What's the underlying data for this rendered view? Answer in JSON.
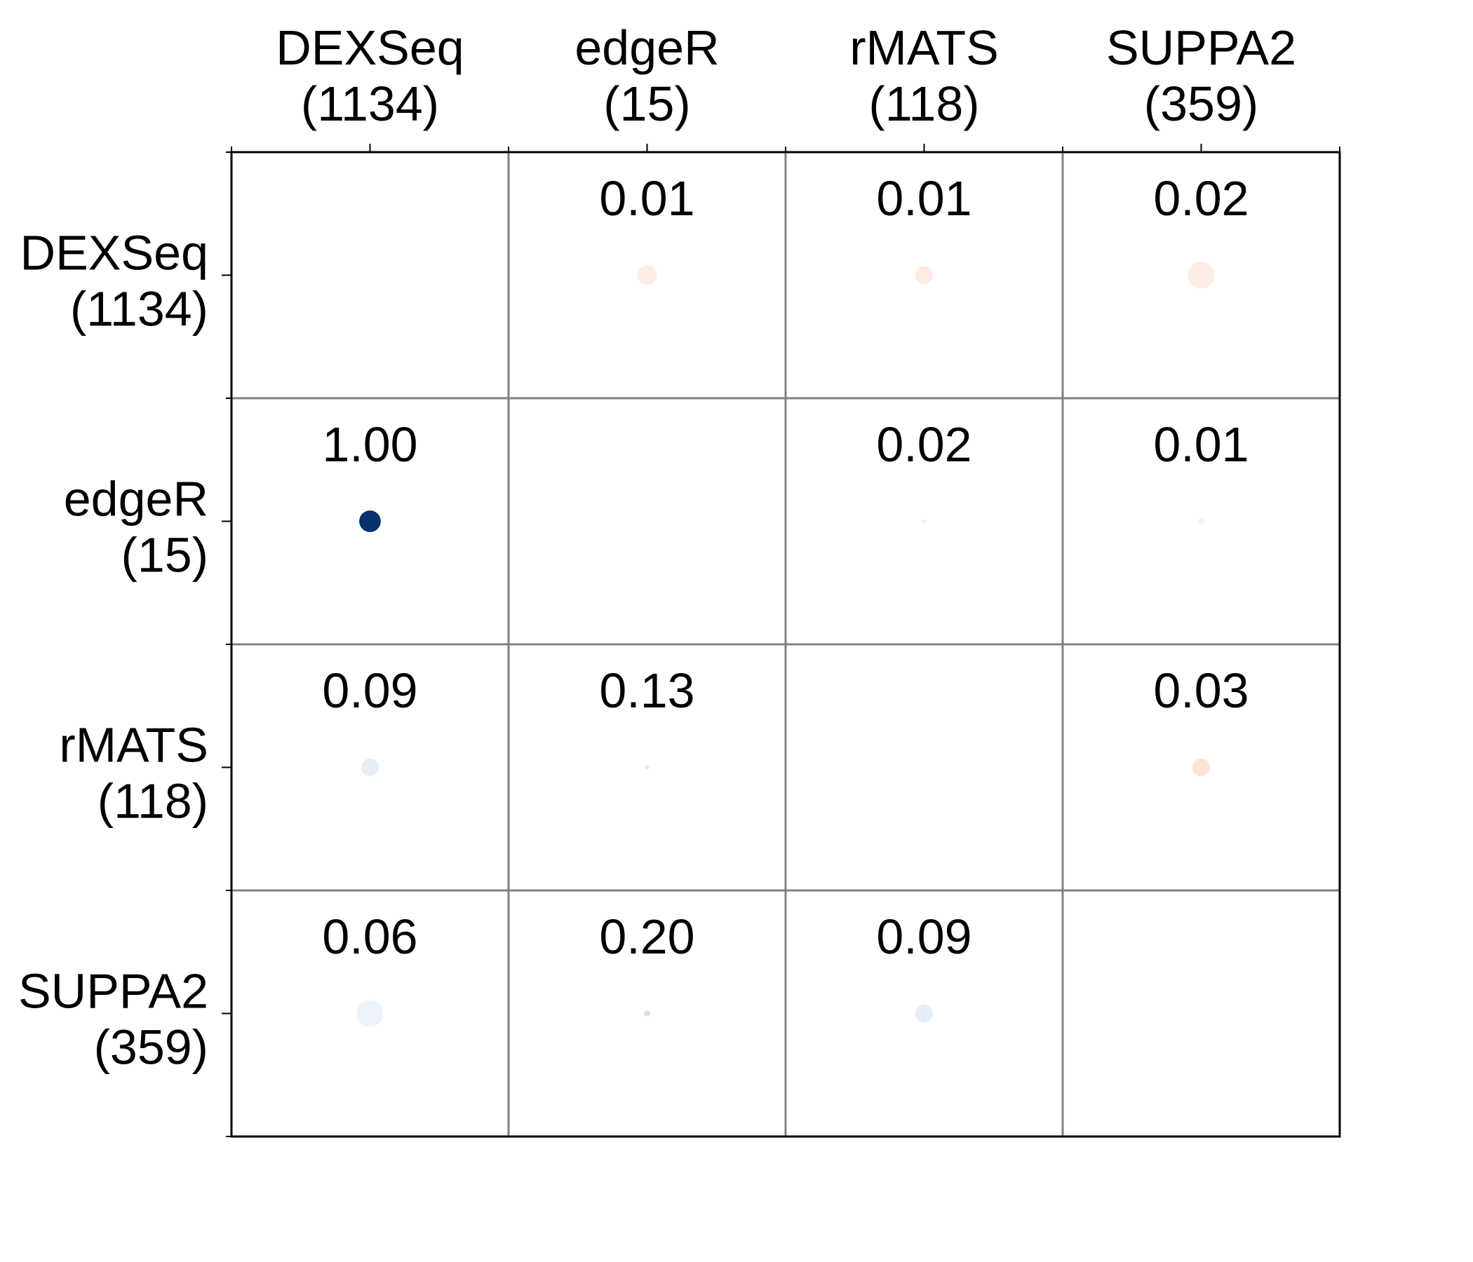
{
  "chart_data": {
    "type": "heatmap",
    "title": "",
    "xlabel": "",
    "ylabel": "",
    "categories": [
      "DEXSeq",
      "edgeR",
      "rMATS",
      "SUPPA2"
    ],
    "counts": [
      "(1134)",
      "(15)",
      "(118)",
      "(359)"
    ],
    "cells": [
      {
        "row": 0,
        "col": 1,
        "label": "0.01",
        "value": 0.01,
        "size": 0.5,
        "color": "#fdece4"
      },
      {
        "row": 0,
        "col": 2,
        "label": "0.01",
        "value": 0.01,
        "size": 0.45,
        "color": "#fdece4"
      },
      {
        "row": 0,
        "col": 3,
        "label": "0.02",
        "value": 0.02,
        "size": 0.68,
        "color": "#fdece4"
      },
      {
        "row": 1,
        "col": 0,
        "label": "1.00",
        "value": 1.0,
        "size": 0.55,
        "color": "#08306b"
      },
      {
        "row": 1,
        "col": 2,
        "label": "0.02",
        "value": 0.02,
        "size": 0.1,
        "color": "#fdece4"
      },
      {
        "row": 1,
        "col": 3,
        "label": "0.01",
        "value": 0.01,
        "size": 0.15,
        "color": "#fdece4"
      },
      {
        "row": 2,
        "col": 0,
        "label": "0.09",
        "value": 0.09,
        "size": 0.45,
        "color": "#e5eef8"
      },
      {
        "row": 2,
        "col": 1,
        "label": "0.13",
        "value": 0.13,
        "size": 0.1,
        "color": "#dbe7f4"
      },
      {
        "row": 2,
        "col": 3,
        "label": "0.03",
        "value": 0.03,
        "size": 0.45,
        "color": "#fde3d7"
      },
      {
        "row": 3,
        "col": 0,
        "label": "0.06",
        "value": 0.06,
        "size": 0.68,
        "color": "#edf3fb"
      },
      {
        "row": 3,
        "col": 1,
        "label": "0.20",
        "value": 0.2,
        "size": 0.15,
        "color": "#d0e1f2"
      },
      {
        "row": 3,
        "col": 2,
        "label": "0.09",
        "value": 0.09,
        "size": 0.45,
        "color": "#e5eef8"
      }
    ]
  }
}
